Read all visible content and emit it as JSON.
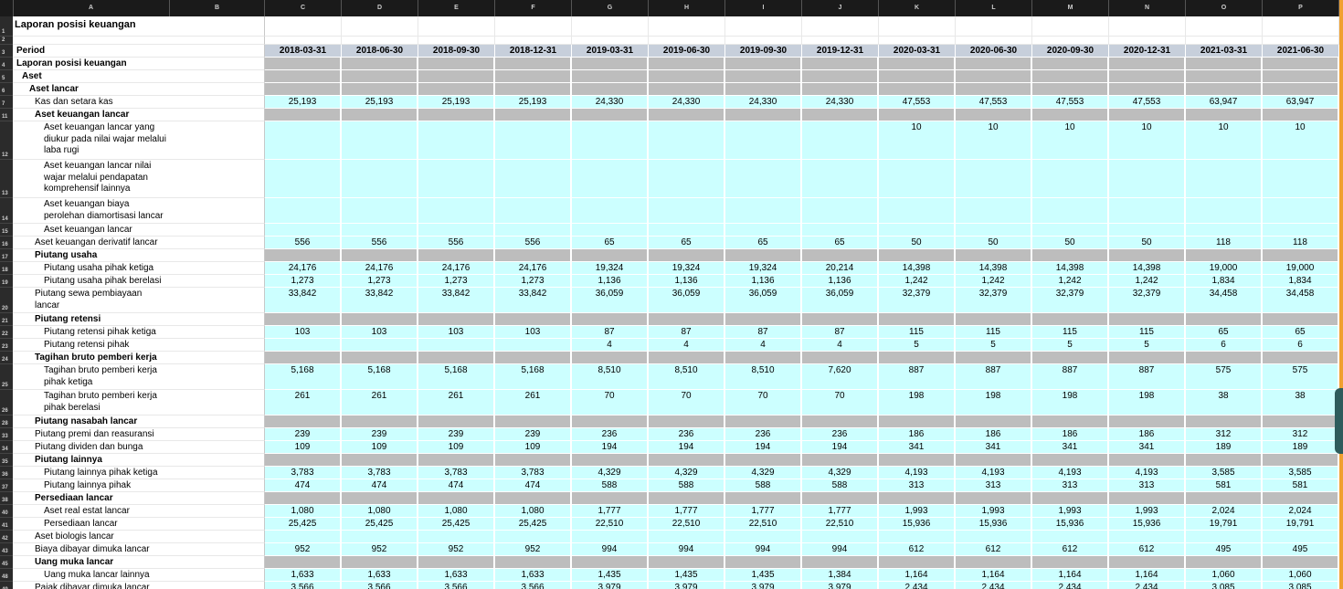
{
  "sheet_title": "Laporan posisi keuangan",
  "column_letters": [
    "A",
    "B",
    "C",
    "D",
    "E",
    "F",
    "G",
    "H",
    "I",
    "J",
    "K",
    "L",
    "M",
    "N",
    "O",
    "P"
  ],
  "period_label": "Period",
  "periods": [
    "2018-03-31",
    "2018-06-30",
    "2018-09-30",
    "2018-12-31",
    "2019-03-31",
    "2019-06-30",
    "2019-09-30",
    "2019-12-31",
    "2020-03-31",
    "2020-06-30",
    "2020-09-30",
    "2020-12-31",
    "2021-03-31",
    "2021-06-30"
  ],
  "rows": [
    {
      "num": "1",
      "label": "",
      "kind": "title"
    },
    {
      "num": "2",
      "label": "",
      "kind": "blank"
    },
    {
      "num": "3",
      "label": "Period",
      "kind": "period"
    },
    {
      "num": "4",
      "label": "Laporan posisi keuangan",
      "kind": "head",
      "indent": 0,
      "bold": true
    },
    {
      "num": "5",
      "label": "Aset",
      "kind": "head",
      "indent": 1,
      "bold": true
    },
    {
      "num": "6",
      "label": "Aset lancar",
      "kind": "head",
      "indent": 2,
      "bold": true
    },
    {
      "num": "7",
      "label": "Kas dan setara kas",
      "kind": "data",
      "indent": 3,
      "values": [
        "25,193",
        "25,193",
        "25,193",
        "25,193",
        "24,330",
        "24,330",
        "24,330",
        "24,330",
        "47,553",
        "47,553",
        "47,553",
        "47,553",
        "63,947",
        "63,947"
      ]
    },
    {
      "num": "11",
      "label": "Aset keuangan lancar",
      "kind": "head",
      "indent": 3,
      "bold": true
    },
    {
      "num": "12",
      "label": "Aset keuangan lancar yang diukur pada nilai wajar melalui laba rugi",
      "kind": "data",
      "indent": 4,
      "lines": 3,
      "values": [
        "",
        "",
        "",
        "",
        "",
        "",
        "",
        "",
        "10",
        "10",
        "10",
        "10",
        "10",
        "10"
      ]
    },
    {
      "num": "13",
      "label": "Aset keuangan lancar nilai wajar melalui pendapatan komprehensif lainnya",
      "kind": "data",
      "indent": 4,
      "lines": 3,
      "values": [
        "",
        "",
        "",
        "",
        "",
        "",
        "",
        "",
        "",
        "",
        "",
        "",
        "",
        ""
      ]
    },
    {
      "num": "14",
      "label": "Aset keuangan biaya perolehan diamortisasi lancar",
      "kind": "data",
      "indent": 4,
      "lines": 2,
      "values": [
        "",
        "",
        "",
        "",
        "",
        "",
        "",
        "",
        "",
        "",
        "",
        "",
        "",
        ""
      ]
    },
    {
      "num": "15",
      "label": "Aset keuangan lancar",
      "kind": "data",
      "indent": 4,
      "values": [
        "",
        "",
        "",
        "",
        "",
        "",
        "",
        "",
        "",
        "",
        "",
        "",
        "",
        ""
      ]
    },
    {
      "num": "16",
      "label": "Aset keuangan derivatif lancar",
      "kind": "data",
      "indent": 3,
      "values": [
        "556",
        "556",
        "556",
        "556",
        "65",
        "65",
        "65",
        "65",
        "50",
        "50",
        "50",
        "50",
        "118",
        "118"
      ]
    },
    {
      "num": "17",
      "label": "Piutang usaha",
      "kind": "head",
      "indent": 3,
      "bold": true
    },
    {
      "num": "18",
      "label": "Piutang usaha pihak ketiga",
      "kind": "data",
      "indent": 4,
      "values": [
        "24,176",
        "24,176",
        "24,176",
        "24,176",
        "19,324",
        "19,324",
        "19,324",
        "20,214",
        "14,398",
        "14,398",
        "14,398",
        "14,398",
        "19,000",
        "19,000"
      ]
    },
    {
      "num": "19",
      "label": "Piutang usaha pihak berelasi",
      "kind": "data",
      "indent": 4,
      "values": [
        "1,273",
        "1,273",
        "1,273",
        "1,273",
        "1,136",
        "1,136",
        "1,136",
        "1,136",
        "1,242",
        "1,242",
        "1,242",
        "1,242",
        "1,834",
        "1,834"
      ]
    },
    {
      "num": "20",
      "label": "Piutang sewa pembiayaan lancar",
      "kind": "data",
      "indent": 3,
      "lines": 2,
      "values": [
        "33,842",
        "33,842",
        "33,842",
        "33,842",
        "36,059",
        "36,059",
        "36,059",
        "36,059",
        "32,379",
        "32,379",
        "32,379",
        "32,379",
        "34,458",
        "34,458"
      ]
    },
    {
      "num": "21",
      "label": "Piutang retensi",
      "kind": "head",
      "indent": 3,
      "bold": true
    },
    {
      "num": "22",
      "label": "Piutang retensi pihak ketiga",
      "kind": "data",
      "indent": 4,
      "values": [
        "103",
        "103",
        "103",
        "103",
        "87",
        "87",
        "87",
        "87",
        "115",
        "115",
        "115",
        "115",
        "65",
        "65"
      ]
    },
    {
      "num": "23",
      "label": "Piutang retensi pihak",
      "kind": "data",
      "indent": 4,
      "values": [
        "",
        "",
        "",
        "",
        "4",
        "4",
        "4",
        "4",
        "5",
        "5",
        "5",
        "5",
        "6",
        "6"
      ]
    },
    {
      "num": "24",
      "label": "Tagihan bruto pemberi kerja",
      "kind": "head",
      "indent": 3,
      "bold": true
    },
    {
      "num": "25",
      "label": "Tagihan bruto pemberi kerja pihak ketiga",
      "kind": "data",
      "indent": 4,
      "lines": 2,
      "values": [
        "5,168",
        "5,168",
        "5,168",
        "5,168",
        "8,510",
        "8,510",
        "8,510",
        "7,620",
        "887",
        "887",
        "887",
        "887",
        "575",
        "575"
      ]
    },
    {
      "num": "26",
      "label": "Tagihan bruto pemberi kerja pihak berelasi",
      "kind": "data",
      "indent": 4,
      "lines": 2,
      "values": [
        "261",
        "261",
        "261",
        "261",
        "70",
        "70",
        "70",
        "70",
        "198",
        "198",
        "198",
        "198",
        "38",
        "38"
      ]
    },
    {
      "num": "28",
      "label": "Piutang nasabah lancar",
      "kind": "head",
      "indent": 3,
      "bold": true
    },
    {
      "num": "33",
      "label": "Piutang premi dan reasuransi",
      "kind": "data",
      "indent": 3,
      "values": [
        "239",
        "239",
        "239",
        "239",
        "236",
        "236",
        "236",
        "236",
        "186",
        "186",
        "186",
        "186",
        "312",
        "312"
      ]
    },
    {
      "num": "34",
      "label": "Piutang dividen dan bunga",
      "kind": "data",
      "indent": 3,
      "values": [
        "109",
        "109",
        "109",
        "109",
        "194",
        "194",
        "194",
        "194",
        "341",
        "341",
        "341",
        "341",
        "189",
        "189"
      ]
    },
    {
      "num": "35",
      "label": "Piutang lainnya",
      "kind": "head",
      "indent": 3,
      "bold": true
    },
    {
      "num": "36",
      "label": "Piutang lainnya pihak ketiga",
      "kind": "data",
      "indent": 4,
      "values": [
        "3,783",
        "3,783",
        "3,783",
        "3,783",
        "4,329",
        "4,329",
        "4,329",
        "4,329",
        "4,193",
        "4,193",
        "4,193",
        "4,193",
        "3,585",
        "3,585"
      ]
    },
    {
      "num": "37",
      "label": "Piutang lainnya pihak",
      "kind": "data",
      "indent": 4,
      "values": [
        "474",
        "474",
        "474",
        "474",
        "588",
        "588",
        "588",
        "588",
        "313",
        "313",
        "313",
        "313",
        "581",
        "581"
      ]
    },
    {
      "num": "38",
      "label": "Persediaan lancar",
      "kind": "head",
      "indent": 3,
      "bold": true
    },
    {
      "num": "40",
      "label": "Aset real estat lancar",
      "kind": "data",
      "indent": 4,
      "values": [
        "1,080",
        "1,080",
        "1,080",
        "1,080",
        "1,777",
        "1,777",
        "1,777",
        "1,777",
        "1,993",
        "1,993",
        "1,993",
        "1,993",
        "2,024",
        "2,024"
      ]
    },
    {
      "num": "41",
      "label": "Persediaan lancar",
      "kind": "data",
      "indent": 4,
      "values": [
        "25,425",
        "25,425",
        "25,425",
        "25,425",
        "22,510",
        "22,510",
        "22,510",
        "22,510",
        "15,936",
        "15,936",
        "15,936",
        "15,936",
        "19,791",
        "19,791"
      ]
    },
    {
      "num": "42",
      "label": "Aset biologis lancar",
      "kind": "data",
      "indent": 3,
      "values": [
        "",
        "",
        "",
        "",
        "",
        "",
        "",
        "",
        "",
        "",
        "",
        "",
        "",
        ""
      ]
    },
    {
      "num": "43",
      "label": "Biaya dibayar dimuka lancar",
      "kind": "data",
      "indent": 3,
      "values": [
        "952",
        "952",
        "952",
        "952",
        "994",
        "994",
        "994",
        "994",
        "612",
        "612",
        "612",
        "612",
        "495",
        "495"
      ]
    },
    {
      "num": "45",
      "label": "Uang muka lancar",
      "kind": "head",
      "indent": 3,
      "bold": true
    },
    {
      "num": "48",
      "label": "Uang muka lancar lainnya",
      "kind": "data",
      "indent": 4,
      "values": [
        "1,633",
        "1,633",
        "1,633",
        "1,633",
        "1,435",
        "1,435",
        "1,435",
        "1,384",
        "1,164",
        "1,164",
        "1,164",
        "1,164",
        "1,060",
        "1,060"
      ]
    },
    {
      "num": "49",
      "label": "Pajak dibayar dimuka lancar",
      "kind": "data",
      "indent": 3,
      "values": [
        "3,566",
        "3,566",
        "3,566",
        "3,566",
        "3,979",
        "3,979",
        "3,979",
        "3,979",
        "2,434",
        "2,434",
        "2,434",
        "2,434",
        "3,085",
        "3,085"
      ]
    }
  ]
}
